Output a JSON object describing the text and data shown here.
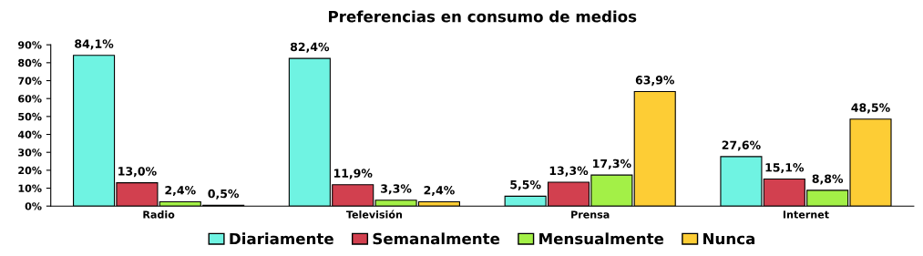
{
  "chart_data": {
    "type": "bar",
    "title": "Preferencias en consumo de medios",
    "categories": [
      "Radio",
      "Televisión",
      "Prensa",
      "Internet"
    ],
    "series": [
      {
        "name": "Diariamente",
        "color": "#6ff3e2",
        "values": [
          84.1,
          82.4,
          5.5,
          27.6
        ],
        "value_labels": [
          "84,1%",
          "82,4%",
          "5,5%",
          "27,6%"
        ]
      },
      {
        "name": "Semanalmente",
        "color": "#d2404f",
        "values": [
          13.0,
          11.9,
          13.3,
          15.1
        ],
        "value_labels": [
          "13,0%",
          "11,9%",
          "13,3%",
          "15,1%"
        ]
      },
      {
        "name": "Mensualmente",
        "color": "#a3f047",
        "values": [
          2.4,
          3.3,
          17.3,
          8.8
        ],
        "value_labels": [
          "2,4%",
          "3,3%",
          "17,3%",
          "8,8%"
        ]
      },
      {
        "name": "Nunca",
        "color": "#fdcd35",
        "values": [
          0.5,
          2.4,
          63.9,
          48.5
        ],
        "value_labels": [
          "0,5%",
          "2,4%",
          "63,9%",
          "48,5%"
        ]
      }
    ],
    "ylim": [
      0,
      90
    ],
    "yticks": [
      {
        "value": 0,
        "label": "0%"
      },
      {
        "value": 10,
        "label": "10%"
      },
      {
        "value": 20,
        "label": "20%"
      },
      {
        "value": 30,
        "label": "30%"
      },
      {
        "value": 40,
        "label": "40%"
      },
      {
        "value": 50,
        "label": "50%"
      },
      {
        "value": 60,
        "label": "60%"
      },
      {
        "value": 70,
        "label": "70%"
      },
      {
        "value": 80,
        "label": "80%"
      },
      {
        "value": 90,
        "label": "90%"
      }
    ],
    "grid": false,
    "legend": "bottom"
  }
}
